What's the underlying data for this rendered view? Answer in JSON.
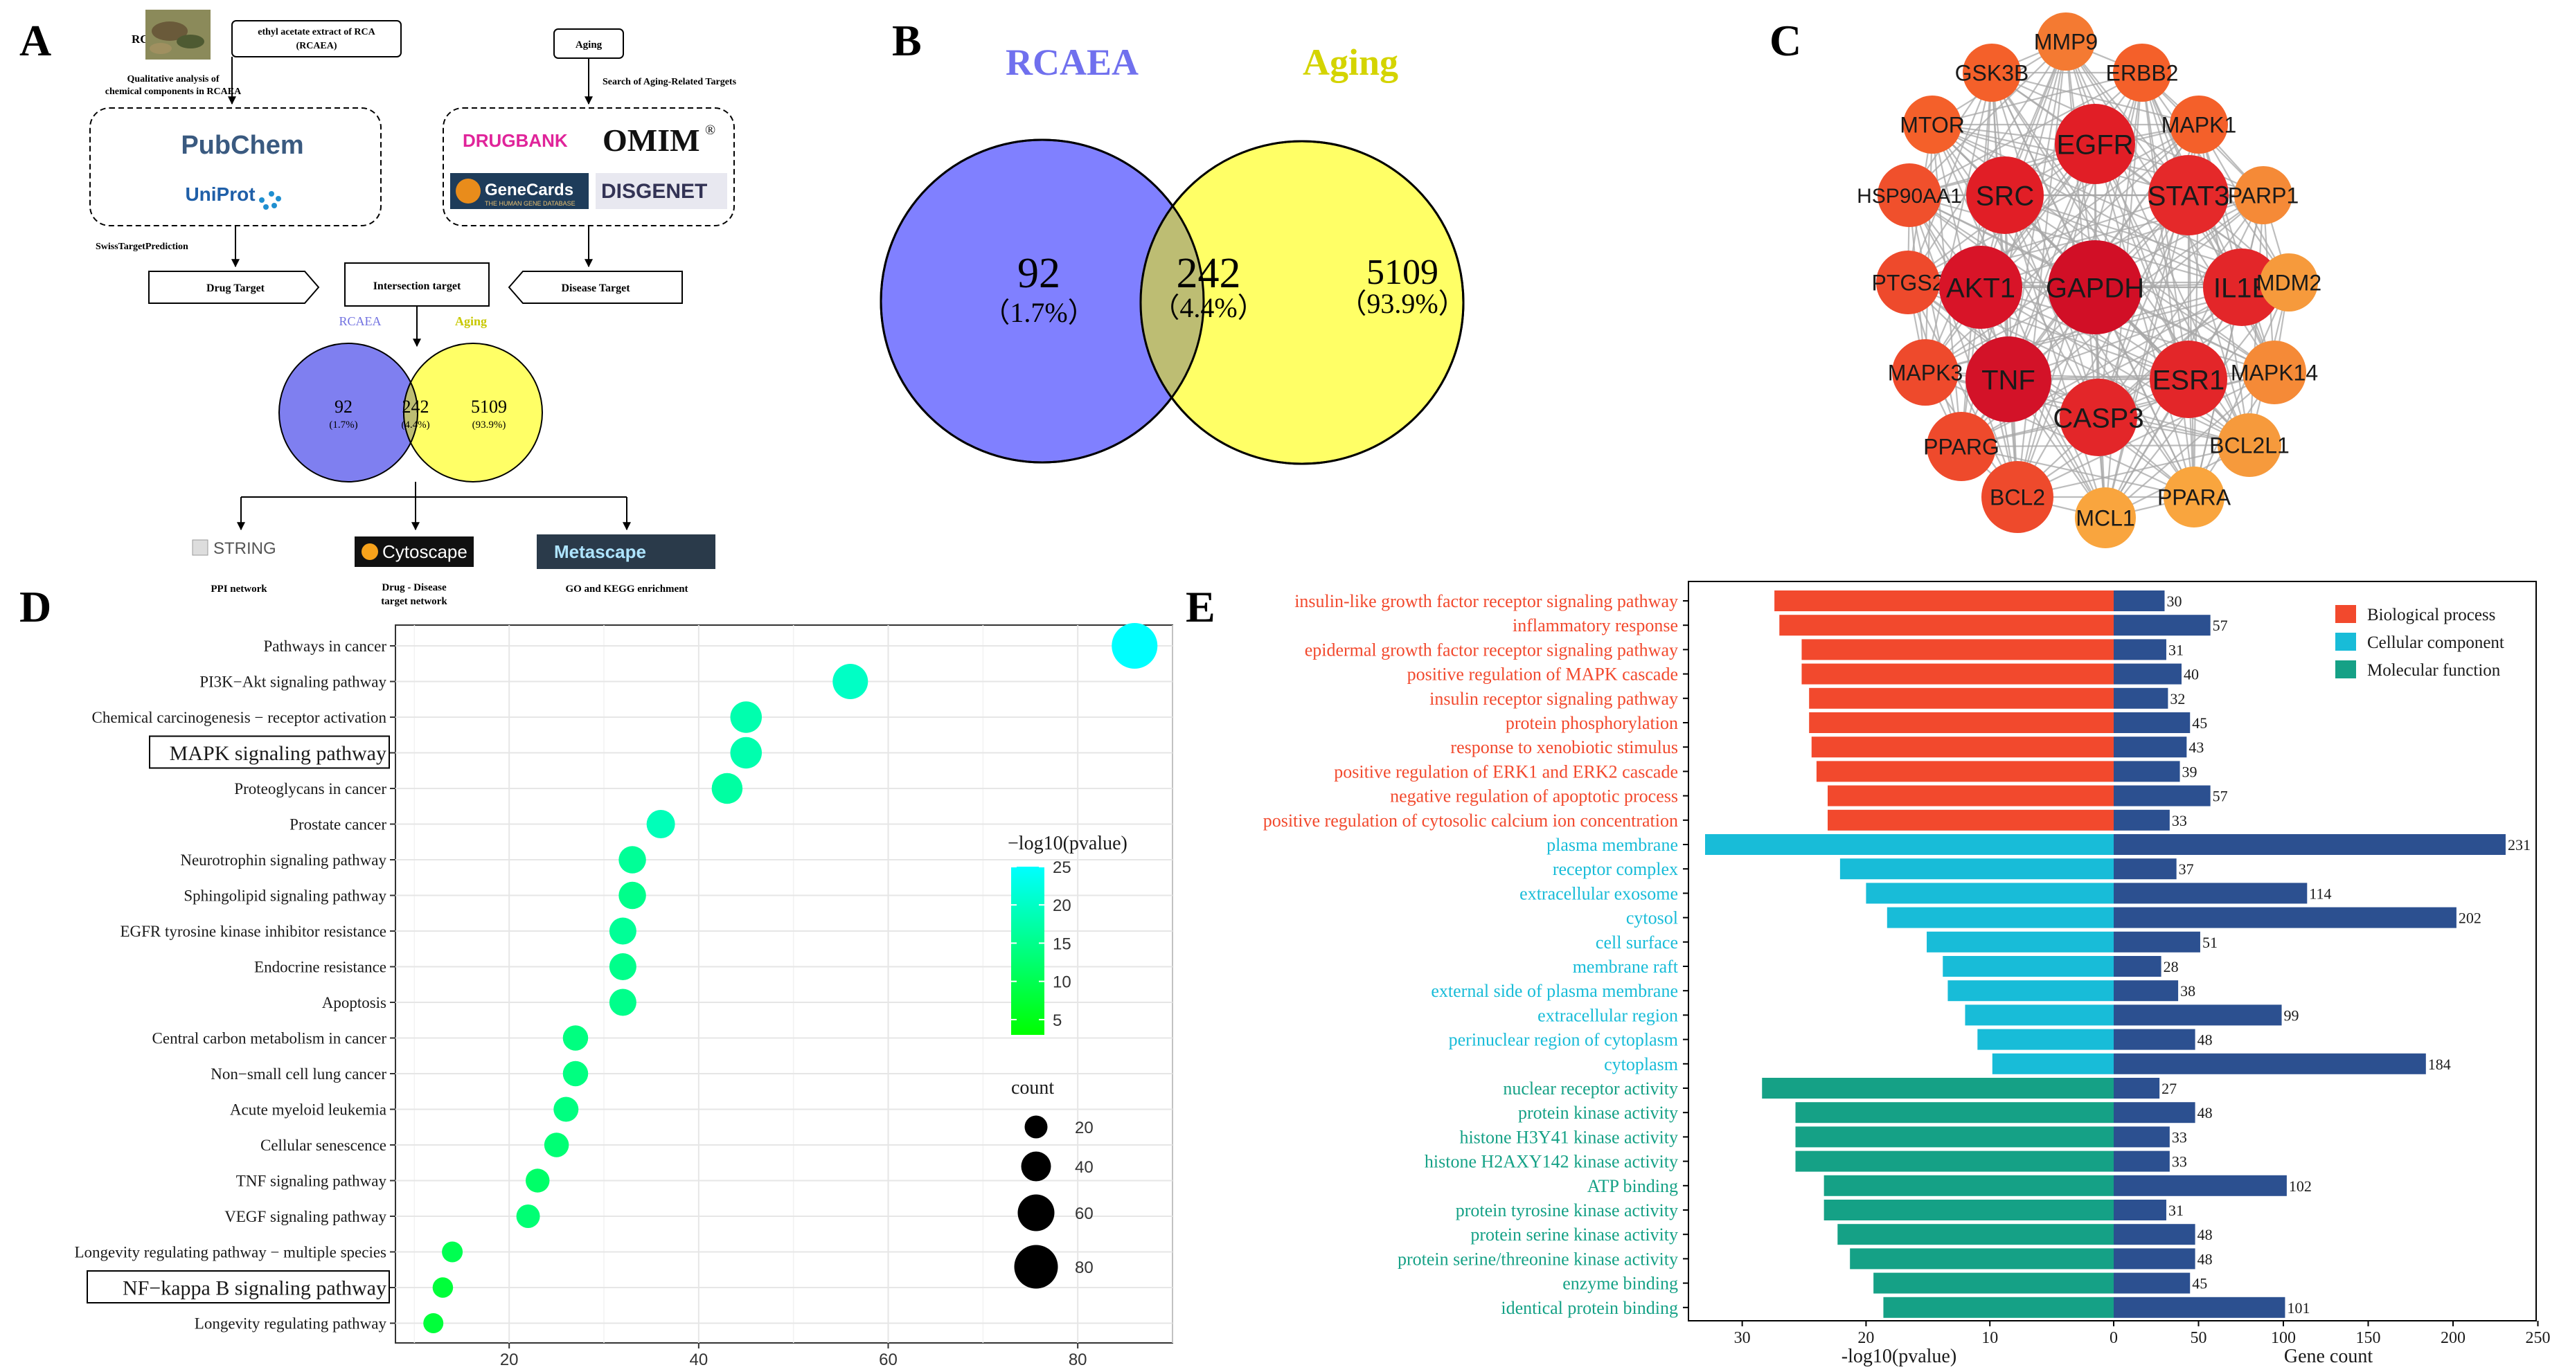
{
  "panel_labels": {
    "a": "A",
    "b": "B",
    "c": "C",
    "d": "D",
    "e": "E"
  },
  "panel_a": {
    "rca_label": "RCA",
    "extract_label_1": "ethyl acetate extract of RCA",
    "extract_label_2": "(RCAEA)",
    "qualitative_1": "Qualitative analysis of",
    "qualitative_2": "chemical components in RCAEA",
    "aging_label": "Aging",
    "search_label": "Search of  Aging-Related Targets",
    "db_pubchem": "PubChem",
    "db_uniprot": "UniProt",
    "db_drugbank": "DRUGBANK",
    "db_omim": "OMIM",
    "db_omim_sup": "®",
    "db_genecards": "GeneCards",
    "db_genecards_sub": "THE HUMAN GENE DATABASE",
    "db_disgenet": "DISGENET",
    "swiss_label": "SwissTargetPrediction",
    "drug_target": "Drug Target",
    "intersection_target": "Intersection target",
    "disease_target": "Disease Target",
    "venn_left_title": "RCAEA",
    "venn_right_title": "Aging",
    "venn_left_count": "92",
    "venn_left_pct": "(1.7%)",
    "venn_mid_count": "242",
    "venn_mid_pct": "(4.4%)",
    "venn_right_count": "5109",
    "venn_right_pct": "(93.9%)",
    "tool_string": "STRING",
    "tool_cytoscape": "Cytoscape",
    "tool_metascape": "Metascape",
    "out_ppi": "PPI network",
    "out_drug_1": "Drug - Disease",
    "out_drug_2": "target network",
    "out_go": "GO and KEGG enrichment"
  },
  "panel_b": {
    "left_title": "RCAEA",
    "right_title": "Aging",
    "left_count": "92",
    "left_pct": "（1.7%）",
    "mid_count": "242",
    "mid_pct": "（4.4%）",
    "right_count": "5109",
    "right_pct": "（93.9%）",
    "colors": {
      "left": "#8080ff",
      "right": "#ffff66",
      "overlap": "#bdbd73"
    }
  },
  "panel_c": {
    "nodes": [
      {
        "name": "GSK3B",
        "color": "#f4602a"
      },
      {
        "name": "MMP9",
        "color": "#f47a32"
      },
      {
        "name": "ERBB2",
        "color": "#f4602a"
      },
      {
        "name": "MTOR",
        "color": "#f4602a"
      },
      {
        "name": "MAPK1",
        "color": "#f4602a"
      },
      {
        "name": "EGFR",
        "color": "#e11e26"
      },
      {
        "name": "HSP90AA1",
        "color": "#f0502c"
      },
      {
        "name": "SRC",
        "color": "#e11e26"
      },
      {
        "name": "STAT3",
        "color": "#e5292a"
      },
      {
        "name": "PARP1",
        "color": "#f58a37"
      },
      {
        "name": "PTGS2",
        "color": "#ee4a2c"
      },
      {
        "name": "AKT1",
        "color": "#d81428"
      },
      {
        "name": "GAPDH",
        "color": "#d10f26"
      },
      {
        "name": "IL1B",
        "color": "#e32629"
      },
      {
        "name": "MDM2",
        "color": "#f69a3c"
      },
      {
        "name": "MAPK3",
        "color": "#ee4a2c"
      },
      {
        "name": "TNF",
        "color": "#d31228"
      },
      {
        "name": "ESR1",
        "color": "#e32629"
      },
      {
        "name": "MAPK14",
        "color": "#f58a37"
      },
      {
        "name": "CASP3",
        "color": "#e32629"
      },
      {
        "name": "PPARG",
        "color": "#ee4a2c"
      },
      {
        "name": "BCL2L1",
        "color": "#f69a3c"
      },
      {
        "name": "BCL2",
        "color": "#ee4a2c"
      },
      {
        "name": "MCL1",
        "color": "#f9a53e"
      },
      {
        "name": "PPARA",
        "color": "#f9a53e"
      }
    ]
  },
  "chart_data": [
    {
      "type": "scatter",
      "title": "",
      "xlabel": "",
      "ylabel": "",
      "xlim": [
        8,
        90
      ],
      "x_ticks": [
        "20",
        "40",
        "60",
        "80"
      ],
      "grid": true,
      "highlighted": [
        "MAPK signaling pathway",
        "NF−kappa B signaling pathway"
      ],
      "categories": [
        "Pathways in cancer",
        "PI3K−Akt signaling pathway",
        "Chemical carcinogenesis − receptor activation",
        "MAPK signaling pathway",
        "Proteoglycans in cancer",
        "Prostate cancer",
        "Neurotrophin signaling pathway",
        "Sphingolipid signaling pathway",
        "EGFR tyrosine kinase inhibitor resistance",
        "Endocrine resistance",
        "Apoptosis",
        "Central carbon metabolism in cancer",
        "Non−small cell lung cancer",
        "Acute myeloid leukemia",
        "Cellular senescence",
        "TNF signaling pathway",
        "VEGF signaling pathway",
        "Longevity regulating pathway − multiple species",
        "NF−kappa B signaling pathway",
        "Longevity regulating pathway"
      ],
      "count": [
        86,
        56,
        45,
        45,
        43,
        36,
        33,
        33,
        32,
        32,
        32,
        27,
        27,
        26,
        25,
        23,
        22,
        14,
        13,
        12
      ],
      "neg_log10_pvalue": [
        25,
        20,
        18,
        18,
        17,
        19,
        16,
        15,
        16,
        15,
        15,
        14,
        14,
        14,
        13,
        12,
        13,
        10,
        8,
        8
      ],
      "color_legend": {
        "title": "−log10(pvalue)",
        "ticks": [
          "25",
          "20",
          "15",
          "10",
          "5"
        ],
        "range": [
          3,
          25
        ],
        "low_color": "#00ff00",
        "high_color": "#00ffff"
      },
      "size_legend": {
        "title": "count",
        "ticks": [
          "20",
          "40",
          "60",
          "80"
        ],
        "values": [
          20,
          40,
          60,
          80
        ]
      }
    },
    {
      "type": "bar",
      "title": "",
      "left_xlabel": "-log10(pvalue)",
      "right_xlabel": "Gene count",
      "left_xlim": [
        33,
        0
      ],
      "right_xlim": [
        0,
        250
      ],
      "left_ticks": [
        "30",
        "20",
        "10",
        "0"
      ],
      "right_ticks": [
        "0",
        "50",
        "100",
        "150",
        "200",
        "250"
      ],
      "legend": [
        {
          "label": "Biological process",
          "color": "#f2492d"
        },
        {
          "label": "Cellular component",
          "color": "#18bcd8"
        },
        {
          "label": "Molecular function",
          "color": "#15a186"
        }
      ],
      "count_bar_color": "#2c5090",
      "terms": [
        {
          "name": "insulin-like growth factor receptor signaling pathway",
          "group": 0,
          "neglogp": 27.4,
          "count": 30,
          "count_label": "30"
        },
        {
          "name": "inflammatory response",
          "group": 0,
          "neglogp": 27.0,
          "count": 57,
          "count_label": "57"
        },
        {
          "name": "epidermal growth factor receptor signaling pathway",
          "group": 0,
          "neglogp": 25.2,
          "count": 31,
          "count_label": "31"
        },
        {
          "name": "positive regulation of MAPK cascade",
          "group": 0,
          "neglogp": 25.2,
          "count": 40,
          "count_label": "40"
        },
        {
          "name": "insulin receptor signaling pathway",
          "group": 0,
          "neglogp": 24.6,
          "count": 32,
          "count_label": "32"
        },
        {
          "name": "protein phosphorylation",
          "group": 0,
          "neglogp": 24.6,
          "count": 45,
          "count_label": "45"
        },
        {
          "name": "response to xenobiotic stimulus",
          "group": 0,
          "neglogp": 24.4,
          "count": 43,
          "count_label": "43"
        },
        {
          "name": "positive regulation of ERK1 and ERK2 cascade",
          "group": 0,
          "neglogp": 24.0,
          "count": 39,
          "count_label": "39"
        },
        {
          "name": "negative regulation of apoptotic process",
          "group": 0,
          "neglogp": 23.1,
          "count": 57,
          "count_label": "57"
        },
        {
          "name": "positive regulation of cytosolic calcium ion concentration",
          "group": 0,
          "neglogp": 23.1,
          "count": 33,
          "count_label": "33"
        },
        {
          "name": "plasma membrane",
          "group": 1,
          "neglogp": 33.0,
          "count": 231,
          "count_label": "231"
        },
        {
          "name": "receptor complex",
          "group": 1,
          "neglogp": 22.1,
          "count": 37,
          "count_label": "37"
        },
        {
          "name": "extracellular exosome",
          "group": 1,
          "neglogp": 20.0,
          "count": 114,
          "count_label": "114"
        },
        {
          "name": "cytosol",
          "group": 1,
          "neglogp": 18.3,
          "count": 202,
          "count_label": "202"
        },
        {
          "name": "cell surface",
          "group": 1,
          "neglogp": 15.1,
          "count": 51,
          "count_label": "51"
        },
        {
          "name": "membrane raft",
          "group": 1,
          "neglogp": 13.8,
          "count": 28,
          "count_label": "28"
        },
        {
          "name": "external side of plasma membrane",
          "group": 1,
          "neglogp": 13.4,
          "count": 38,
          "count_label": "38"
        },
        {
          "name": "extracellular region",
          "group": 1,
          "neglogp": 12.0,
          "count": 99,
          "count_label": "99"
        },
        {
          "name": "perinuclear region of cytoplasm",
          "group": 1,
          "neglogp": 11.0,
          "count": 48,
          "count_label": "48"
        },
        {
          "name": "cytoplasm",
          "group": 1,
          "neglogp": 9.8,
          "count": 184,
          "count_label": "184"
        },
        {
          "name": "nuclear receptor activity",
          "group": 2,
          "neglogp": 28.4,
          "count": 27,
          "count_label": "27"
        },
        {
          "name": "protein kinase activity",
          "group": 2,
          "neglogp": 25.7,
          "count": 48,
          "count_label": "48"
        },
        {
          "name": "histone H3Y41 kinase activity",
          "group": 2,
          "neglogp": 25.7,
          "count": 33,
          "count_label": "33"
        },
        {
          "name": "histone H2AXY142 kinase activity",
          "group": 2,
          "neglogp": 25.7,
          "count": 33,
          "count_label": "33"
        },
        {
          "name": "ATP binding",
          "group": 2,
          "neglogp": 23.4,
          "count": 102,
          "count_label": "102"
        },
        {
          "name": "protein tyrosine kinase activity",
          "group": 2,
          "neglogp": 23.4,
          "count": 31,
          "count_label": "31"
        },
        {
          "name": "protein serine kinase activity",
          "group": 2,
          "neglogp": 22.3,
          "count": 48,
          "count_label": "48"
        },
        {
          "name": "protein serine/threonine kinase activity",
          "group": 2,
          "neglogp": 21.3,
          "count": 48,
          "count_label": "48"
        },
        {
          "name": "enzyme binding",
          "group": 2,
          "neglogp": 19.4,
          "count": 45,
          "count_label": "45"
        },
        {
          "name": "identical protein binding",
          "group": 2,
          "neglogp": 18.6,
          "count": 101,
          "count_label": "101"
        }
      ]
    }
  ]
}
